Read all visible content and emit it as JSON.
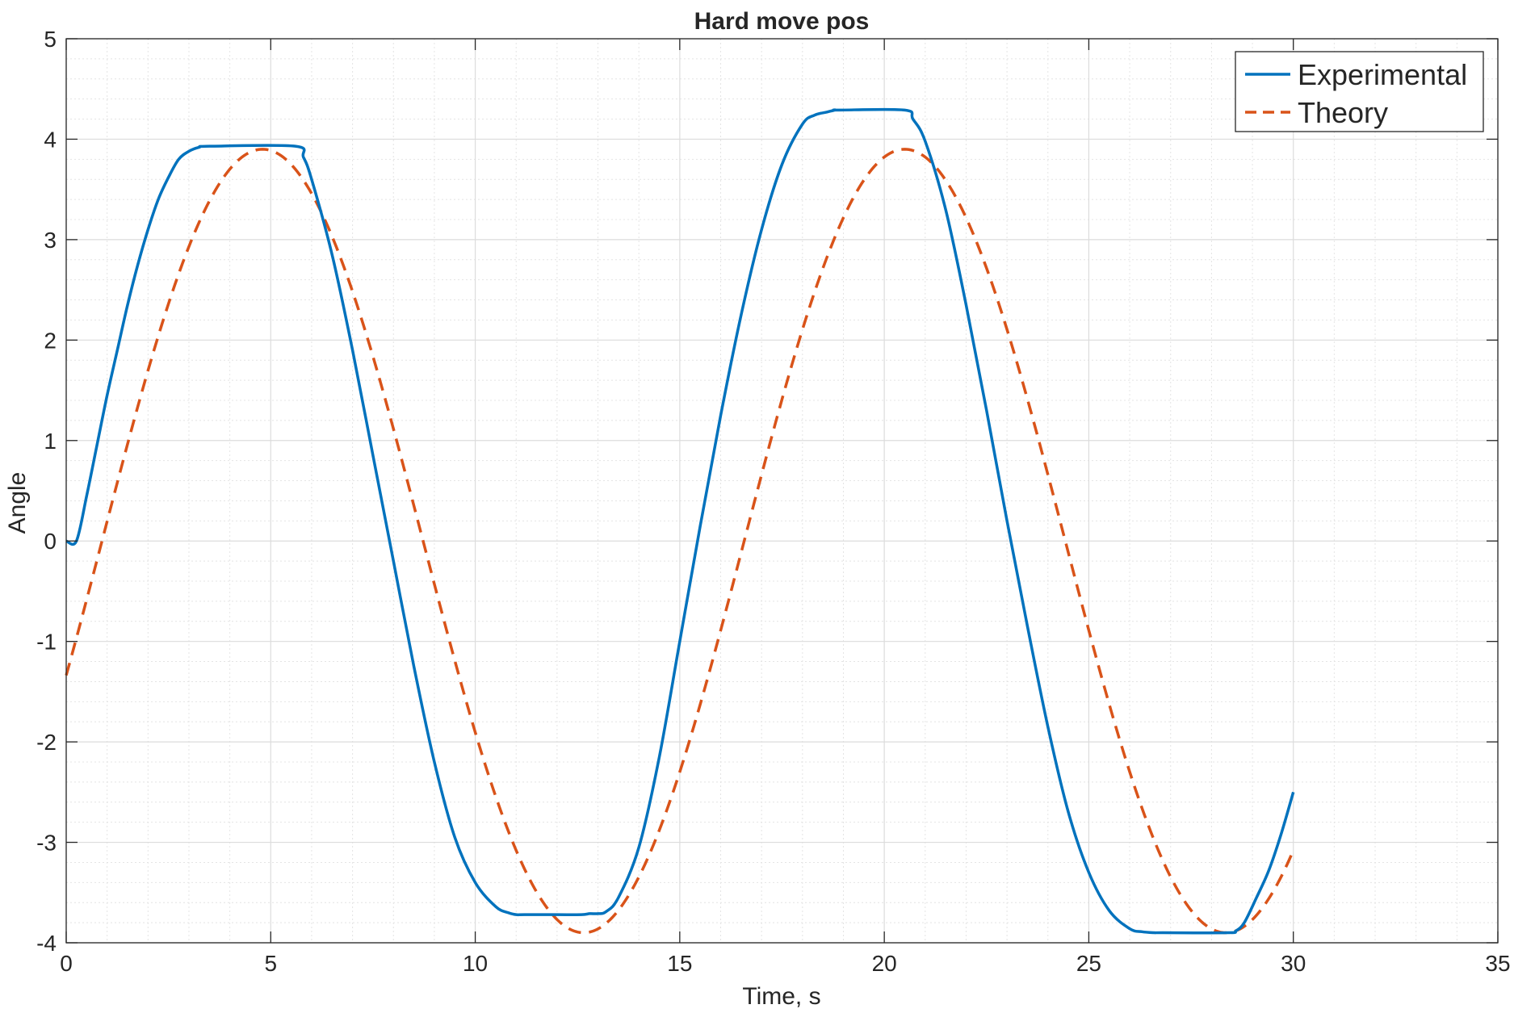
{
  "chart_data": {
    "type": "line",
    "title": "Hard move pos",
    "xlabel": "Time, s",
    "ylabel": "Angle",
    "xlim": [
      0,
      35
    ],
    "ylim": [
      -4,
      5
    ],
    "xticks": [
      "0",
      "5",
      "10",
      "15",
      "20",
      "25",
      "30",
      "35"
    ],
    "yticks": [
      "-4",
      "-3",
      "-2",
      "-1",
      "0",
      "1",
      "2",
      "3",
      "4",
      "5"
    ],
    "grid": "major and minor",
    "legend_position": "top-right",
    "series": [
      {
        "name": "Experimental",
        "color": "#0072BD",
        "style": "solid",
        "x": [
          0,
          0.25,
          0.5,
          0.75,
          1.0,
          1.25,
          1.5,
          1.75,
          2.0,
          2.25,
          2.5,
          2.75,
          3.0,
          3.25,
          3.5,
          5.6,
          5.8,
          6.0,
          6.5,
          7.0,
          7.5,
          8.0,
          8.5,
          9.0,
          9.5,
          10.0,
          10.5,
          10.8,
          11.0,
          11.2,
          12.0,
          12.6,
          12.8,
          13.0,
          13.2,
          13.5,
          14.0,
          14.5,
          15.0,
          15.5,
          16.0,
          16.5,
          17.0,
          17.5,
          18.0,
          18.3,
          18.6,
          18.8,
          18.9,
          20.5,
          20.7,
          21.0,
          21.5,
          22.0,
          22.5,
          23.0,
          23.5,
          24.0,
          24.5,
          25.0,
          25.5,
          26.0,
          26.3,
          26.6,
          26.8,
          28.4,
          28.6,
          28.8,
          29.1,
          29.4,
          29.7,
          30.0
        ],
        "y": [
          0.0,
          0.0,
          0.45,
          0.95,
          1.45,
          1.9,
          2.35,
          2.75,
          3.1,
          3.4,
          3.62,
          3.8,
          3.88,
          3.92,
          3.93,
          3.93,
          3.82,
          3.6,
          2.85,
          1.9,
          0.85,
          -0.2,
          -1.25,
          -2.2,
          -2.95,
          -3.4,
          -3.64,
          -3.7,
          -3.72,
          -3.72,
          -3.72,
          -3.72,
          -3.71,
          -3.71,
          -3.69,
          -3.55,
          -3.05,
          -2.15,
          -1.0,
          0.15,
          1.25,
          2.25,
          3.1,
          3.75,
          4.15,
          4.24,
          4.27,
          4.29,
          4.29,
          4.29,
          4.2,
          3.98,
          3.3,
          2.35,
          1.3,
          0.2,
          -0.85,
          -1.85,
          -2.7,
          -3.3,
          -3.68,
          -3.86,
          -3.89,
          -3.9,
          -3.9,
          -3.9,
          -3.88,
          -3.8,
          -3.55,
          -3.28,
          -2.92,
          -2.5
        ]
      },
      {
        "name": "Theory",
        "color": "#D95319",
        "style": "dashed",
        "amplitude": 3.9,
        "period_s": 15.7,
        "peak_times_s": [
          4.8,
          20.5
        ],
        "trough_times_s": [
          12.65,
          28.35
        ],
        "x_range": [
          0,
          30
        ],
        "start_value": -1.15,
        "end_value": -3.1
      }
    ]
  }
}
